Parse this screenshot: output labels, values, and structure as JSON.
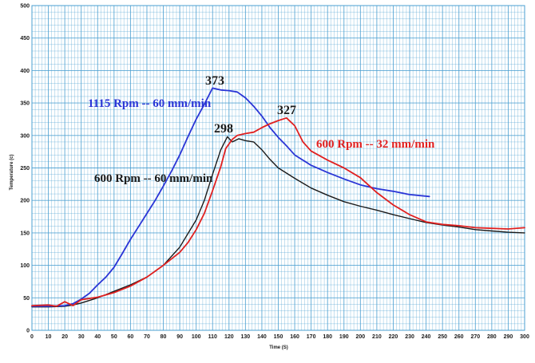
{
  "chart_data": {
    "type": "line",
    "title": "",
    "xlabel": "Time (S)",
    "ylabel": "Temperature (c)",
    "xlim": [
      0,
      300
    ],
    "ylim": [
      0,
      500
    ],
    "x_ticks": [
      0,
      10,
      20,
      30,
      40,
      50,
      60,
      70,
      80,
      90,
      100,
      110,
      120,
      130,
      140,
      150,
      160,
      170,
      180,
      190,
      200,
      210,
      220,
      230,
      240,
      250,
      260,
      270,
      280,
      290,
      300
    ],
    "y_ticks": [
      0,
      50,
      100,
      150,
      200,
      250,
      300,
      350,
      400,
      450,
      500
    ],
    "grid": true,
    "colors": {
      "grid": "#4a9fd0",
      "blue": "#2a35d6",
      "red": "#e02020",
      "black": "#1a1a1a"
    },
    "series": [
      {
        "name": "1115 Rpm -- 60 mm/min",
        "color": "#2a35d6",
        "points": [
          [
            0,
            37
          ],
          [
            10,
            37
          ],
          [
            20,
            38
          ],
          [
            25,
            41
          ],
          [
            30,
            48
          ],
          [
            35,
            57
          ],
          [
            40,
            70
          ],
          [
            45,
            82
          ],
          [
            50,
            97
          ],
          [
            55,
            118
          ],
          [
            60,
            140
          ],
          [
            65,
            160
          ],
          [
            70,
            180
          ],
          [
            75,
            200
          ],
          [
            80,
            222
          ],
          [
            85,
            245
          ],
          [
            90,
            270
          ],
          [
            95,
            298
          ],
          [
            100,
            325
          ],
          [
            105,
            348
          ],
          [
            110,
            373
          ],
          [
            115,
            370
          ],
          [
            120,
            369
          ],
          [
            125,
            367
          ],
          [
            130,
            358
          ],
          [
            135,
            345
          ],
          [
            140,
            330
          ],
          [
            145,
            312
          ],
          [
            150,
            297
          ],
          [
            155,
            284
          ],
          [
            160,
            270
          ],
          [
            170,
            254
          ],
          [
            180,
            243
          ],
          [
            190,
            233
          ],
          [
            200,
            224
          ],
          [
            210,
            218
          ],
          [
            220,
            214
          ],
          [
            230,
            209
          ],
          [
            242,
            206
          ]
        ]
      },
      {
        "name": "600 Rpm -- 60 mm/min",
        "color": "#1a1a1a",
        "points": [
          [
            0,
            36
          ],
          [
            10,
            36
          ],
          [
            20,
            37
          ],
          [
            25,
            39
          ],
          [
            30,
            42
          ],
          [
            40,
            50
          ],
          [
            50,
            60
          ],
          [
            60,
            70
          ],
          [
            70,
            82
          ],
          [
            80,
            100
          ],
          [
            90,
            128
          ],
          [
            100,
            170
          ],
          [
            105,
            200
          ],
          [
            110,
            240
          ],
          [
            115,
            278
          ],
          [
            119,
            298
          ],
          [
            122,
            290
          ],
          [
            126,
            295
          ],
          [
            130,
            292
          ],
          [
            135,
            290
          ],
          [
            140,
            278
          ],
          [
            145,
            263
          ],
          [
            150,
            250
          ],
          [
            160,
            234
          ],
          [
            170,
            219
          ],
          [
            180,
            208
          ],
          [
            190,
            198
          ],
          [
            200,
            191
          ],
          [
            210,
            185
          ],
          [
            220,
            178
          ],
          [
            230,
            172
          ],
          [
            240,
            166
          ],
          [
            250,
            162
          ],
          [
            260,
            159
          ],
          [
            270,
            155
          ],
          [
            280,
            153
          ],
          [
            290,
            151
          ],
          [
            300,
            150
          ]
        ]
      },
      {
        "name": "600 Rpm -- 32 mm/min",
        "color": "#e02020",
        "points": [
          [
            0,
            38
          ],
          [
            10,
            39
          ],
          [
            15,
            37
          ],
          [
            20,
            44
          ],
          [
            25,
            38
          ],
          [
            30,
            47
          ],
          [
            40,
            51
          ],
          [
            50,
            58
          ],
          [
            60,
            68
          ],
          [
            70,
            82
          ],
          [
            80,
            100
          ],
          [
            90,
            120
          ],
          [
            95,
            135
          ],
          [
            100,
            155
          ],
          [
            105,
            180
          ],
          [
            110,
            215
          ],
          [
            115,
            252
          ],
          [
            118,
            280
          ],
          [
            122,
            294
          ],
          [
            125,
            300
          ],
          [
            130,
            303
          ],
          [
            135,
            305
          ],
          [
            140,
            312
          ],
          [
            145,
            318
          ],
          [
            150,
            323
          ],
          [
            155,
            327
          ],
          [
            160,
            315
          ],
          [
            165,
            290
          ],
          [
            170,
            276
          ],
          [
            180,
            262
          ],
          [
            190,
            250
          ],
          [
            200,
            235
          ],
          [
            210,
            212
          ],
          [
            220,
            193
          ],
          [
            230,
            178
          ],
          [
            240,
            167
          ],
          [
            250,
            163
          ],
          [
            260,
            161
          ],
          [
            270,
            158
          ],
          [
            280,
            157
          ],
          [
            290,
            156
          ],
          [
            300,
            158
          ]
        ]
      }
    ],
    "annotations": [
      {
        "text": "373",
        "x": 111,
        "y": 373
      },
      {
        "text": "298",
        "x": 116,
        "y": 298
      },
      {
        "text": "327",
        "x": 155,
        "y": 327
      }
    ]
  }
}
